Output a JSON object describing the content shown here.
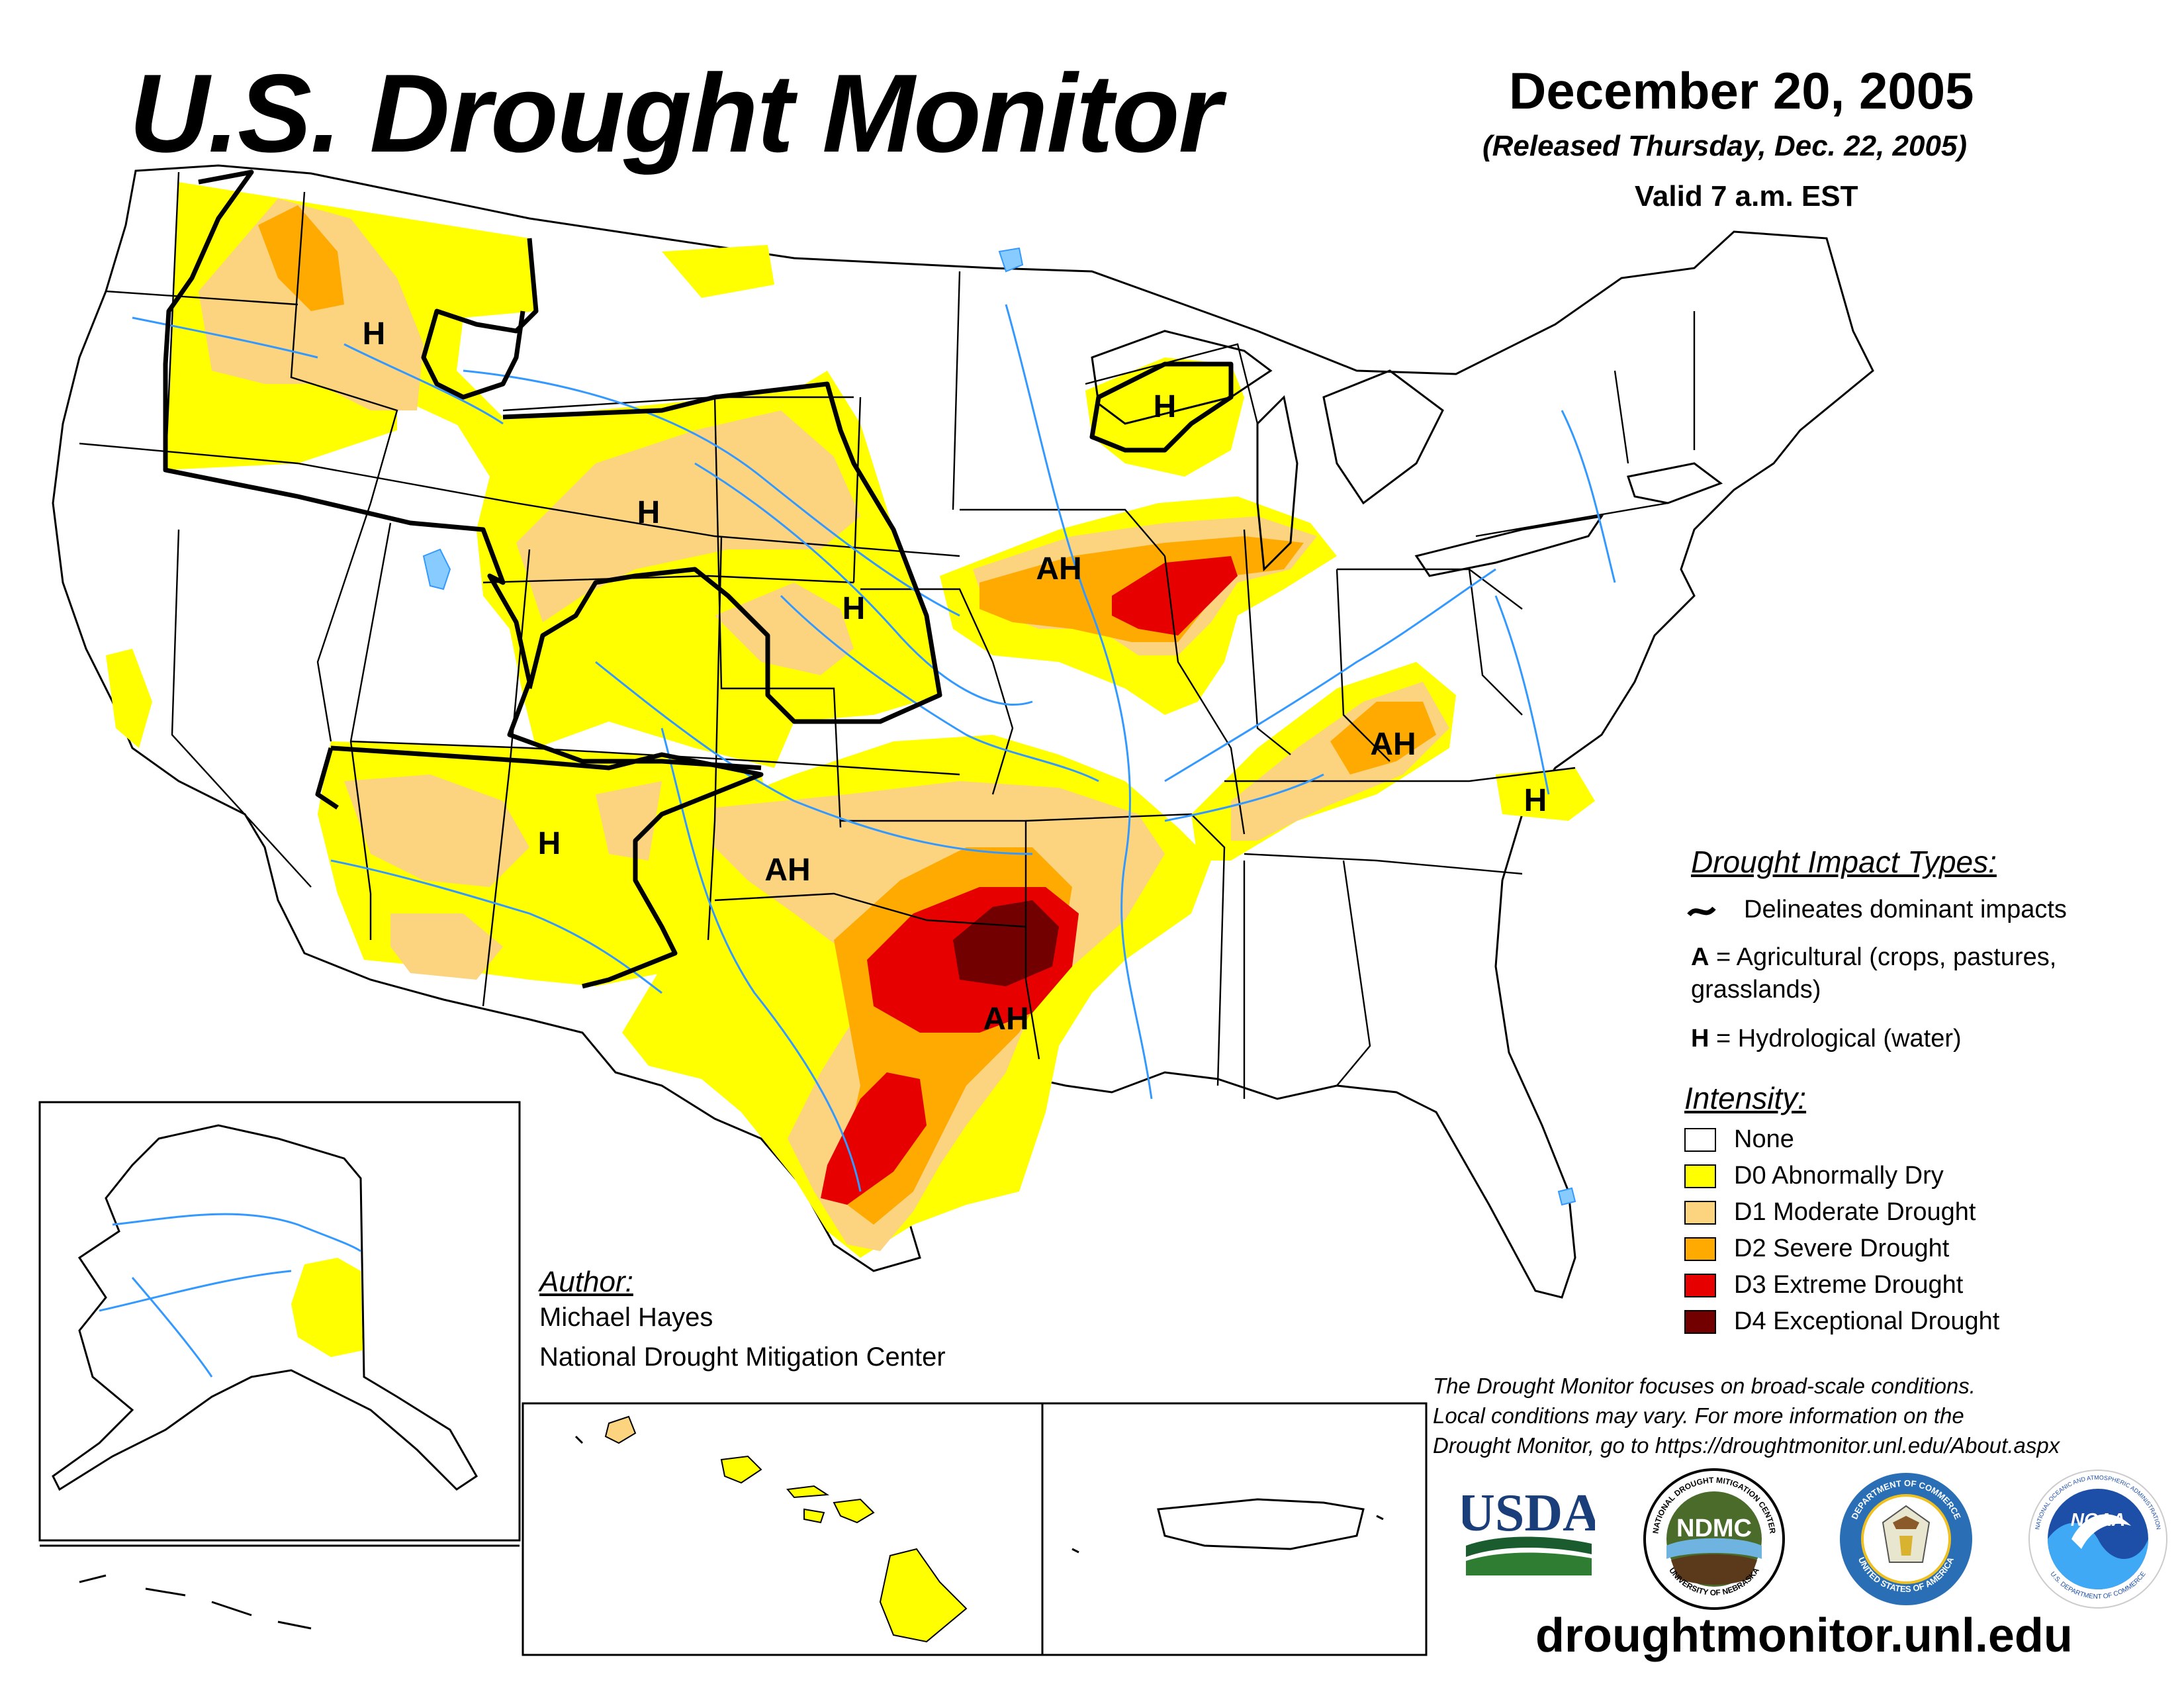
{
  "header": {
    "title": "U.S. Drought Monitor",
    "date": "December 20, 2005",
    "released": "(Released Thursday, Dec. 22, 2005)",
    "valid": "Valid 7 a.m. EST"
  },
  "map_labels": {
    "pacific_northwest": "H",
    "wyoming": "H",
    "nebraska": "H",
    "upper_michigan": "H",
    "southwest": "H",
    "north_carolina": "H",
    "illinois": "AH",
    "kentucky": "AH",
    "oklahoma": "AH",
    "texas_arkansas": "AH"
  },
  "impact_legend": {
    "heading": "Drought Impact Types:",
    "line_text": "Delineates dominant impacts",
    "a_key": "A",
    "a_text": "= Agricultural (crops, pastures,",
    "a_text2": "grasslands)",
    "h_key": "H",
    "h_text": "= Hydrological (water)"
  },
  "intensity_legend": {
    "heading": "Intensity:",
    "items": [
      {
        "label": "None",
        "color": "#ffffff"
      },
      {
        "label": "D0 Abnormally Dry",
        "color": "#ffff00"
      },
      {
        "label": "D1 Moderate Drought",
        "color": "#fcd37f"
      },
      {
        "label": "D2 Severe Drought",
        "color": "#ffaa00"
      },
      {
        "label": "D3 Extreme Drought",
        "color": "#e60000"
      },
      {
        "label": "D4 Exceptional Drought",
        "color": "#730000"
      }
    ]
  },
  "author": {
    "heading": "Author:",
    "name": "Michael Hayes",
    "org": "National Drought Mitigation Center"
  },
  "disclaimer": {
    "line1": "The Drought Monitor focuses on broad-scale conditions.",
    "line2": "Local conditions may vary. For more information on the",
    "line3": "Drought Monitor, go to https://droughtmonitor.unl.edu/About.aspx"
  },
  "logos": {
    "usda": "USDA",
    "ndmc": "NDMC",
    "ndmc_ring_top": "NATIONAL DROUGHT MITIGATION CENTER",
    "ndmc_ring_bottom": "UNIVERSITY OF NEBRASKA",
    "commerce_ring_top": "DEPARTMENT OF COMMERCE",
    "commerce_ring_bottom": "UNITED STATES OF AMERICA",
    "noaa": "NOAA",
    "noaa_ring_top": "NATIONAL OCEANIC AND ATMOSPHERIC ADMINISTRATION",
    "noaa_ring_bottom": "U.S. DEPARTMENT OF COMMERCE"
  },
  "website": "droughtmonitor.unl.edu"
}
